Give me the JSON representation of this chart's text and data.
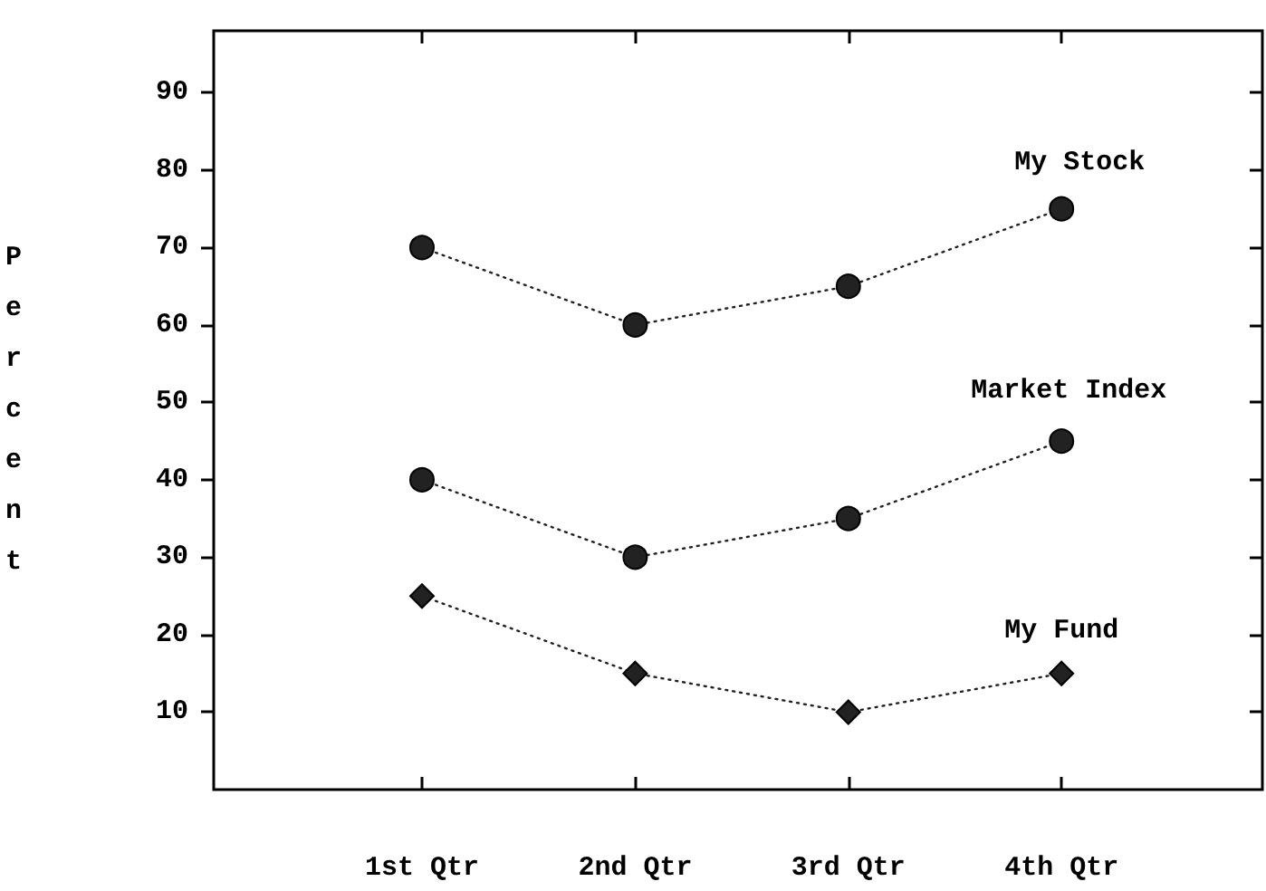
{
  "chart_data": {
    "type": "line",
    "ylabel": "Percent",
    "categories": [
      "1st Qtr",
      "2nd Qtr",
      "3rd Qtr",
      "4th Qtr"
    ],
    "series": [
      {
        "name": "My Stock",
        "color": "#222222",
        "marker": "circle",
        "values": [
          70,
          60,
          65,
          75
        ]
      },
      {
        "name": "Market Index",
        "color": "#222222",
        "marker": "circle",
        "values": [
          40,
          30,
          35,
          45
        ]
      },
      {
        "name": "My Fund",
        "color": "#222222",
        "marker": "diamond",
        "values": [
          25,
          15,
          10,
          15
        ]
      }
    ],
    "ylim": [
      0,
      98
    ],
    "yticks": [
      10,
      20,
      30,
      40,
      50,
      60,
      70,
      80,
      90
    ],
    "grid": false,
    "legend": false,
    "line_style": "dotted"
  }
}
